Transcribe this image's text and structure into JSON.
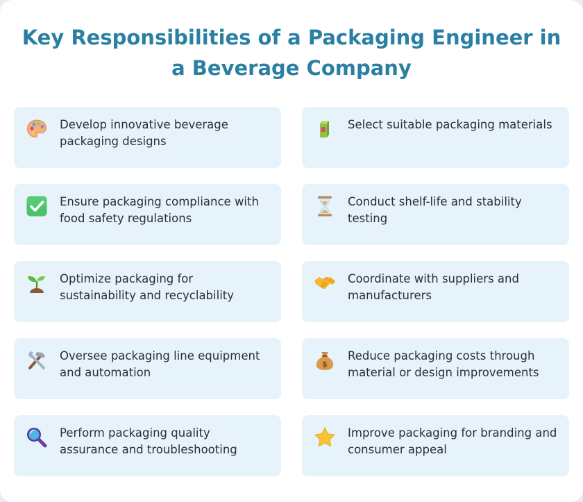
{
  "title": "Key Responsibilities of a Packaging Engineer in a Beverage Company",
  "responsibilities": [
    {
      "text": "Develop innovative beverage packaging designs",
      "icon": "artist-palette-icon"
    },
    {
      "text": "Select suitable packaging materials",
      "icon": "beverage-box-icon"
    },
    {
      "text": "Ensure packaging compliance with food safety regulations",
      "icon": "check-mark-button-icon"
    },
    {
      "text": "Conduct shelf-life and stability testing",
      "icon": "hourglass-icon"
    },
    {
      "text": "Optimize packaging for sustainability and recyclability",
      "icon": "seedling-icon"
    },
    {
      "text": "Coordinate with suppliers and manufacturers",
      "icon": "handshake-icon"
    },
    {
      "text": "Oversee packaging line equipment and automation",
      "icon": "hammer-and-wrench-icon"
    },
    {
      "text": "Reduce packaging costs through material or design improvements",
      "icon": "money-bag-icon"
    },
    {
      "text": "Perform packaging quality assurance and troubleshooting",
      "icon": "magnifying-glass-icon"
    },
    {
      "text": "Improve packaging for branding and consumer appeal",
      "icon": "star-icon"
    }
  ]
}
